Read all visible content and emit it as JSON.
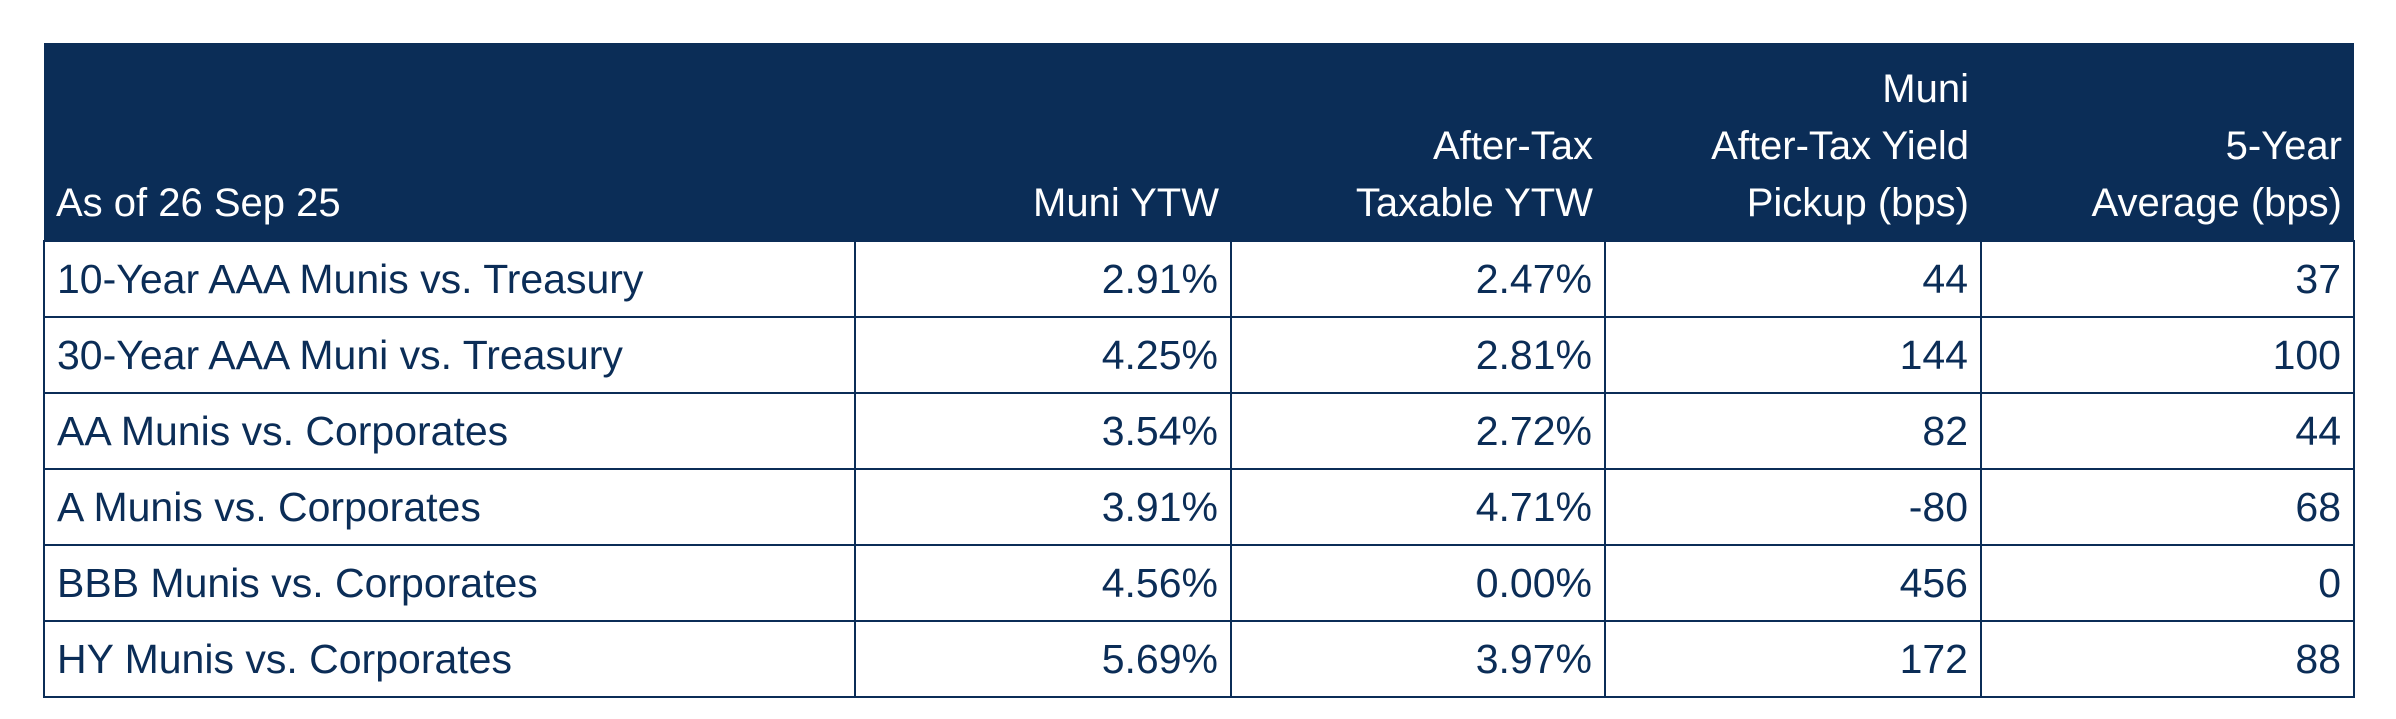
{
  "table": {
    "header": [
      [
        "As of 26 Sep 25"
      ],
      [
        "Muni YTW"
      ],
      [
        "After-Tax",
        "Taxable YTW"
      ],
      [
        "Muni",
        "After-Tax Yield",
        "Pickup (bps)"
      ],
      [
        "5-Year",
        "Average (bps)"
      ]
    ],
    "rows": [
      [
        "10-Year AAA Munis vs. Treasury",
        "2.91%",
        "2.47%",
        "44",
        "37"
      ],
      [
        "30-Year AAA Muni vs. Treasury",
        "4.25%",
        "2.81%",
        "144",
        "100"
      ],
      [
        "AA Munis vs. Corporates",
        "3.54%",
        "2.72%",
        "82",
        "44"
      ],
      [
        "A Munis vs. Corporates",
        "3.91%",
        "4.71%",
        "-80",
        "68"
      ],
      [
        "BBB Munis vs. Corporates",
        "4.56%",
        "0.00%",
        "456",
        "0"
      ],
      [
        "HY Munis vs. Corporates",
        "5.69%",
        "3.97%",
        "172",
        "88"
      ]
    ]
  }
}
